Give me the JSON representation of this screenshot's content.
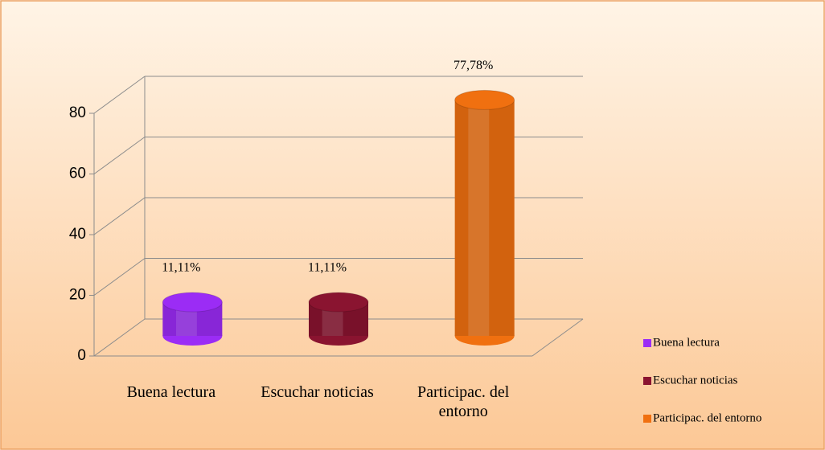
{
  "chart_data": {
    "type": "bar3d",
    "categories": [
      "Buena lectura",
      "Escuchar noticias",
      "Participac. del entorno"
    ],
    "values": [
      11.11,
      11.11,
      77.78
    ],
    "value_labels": [
      "11,11%",
      "11,11%",
      "77,78%"
    ],
    "colors": [
      "#9b2cf5",
      "#8a1430",
      "#f07010"
    ],
    "ylim": [
      0,
      80
    ],
    "yticks": [
      0,
      20,
      40,
      60,
      80
    ],
    "grid": true,
    "legend": "right"
  }
}
